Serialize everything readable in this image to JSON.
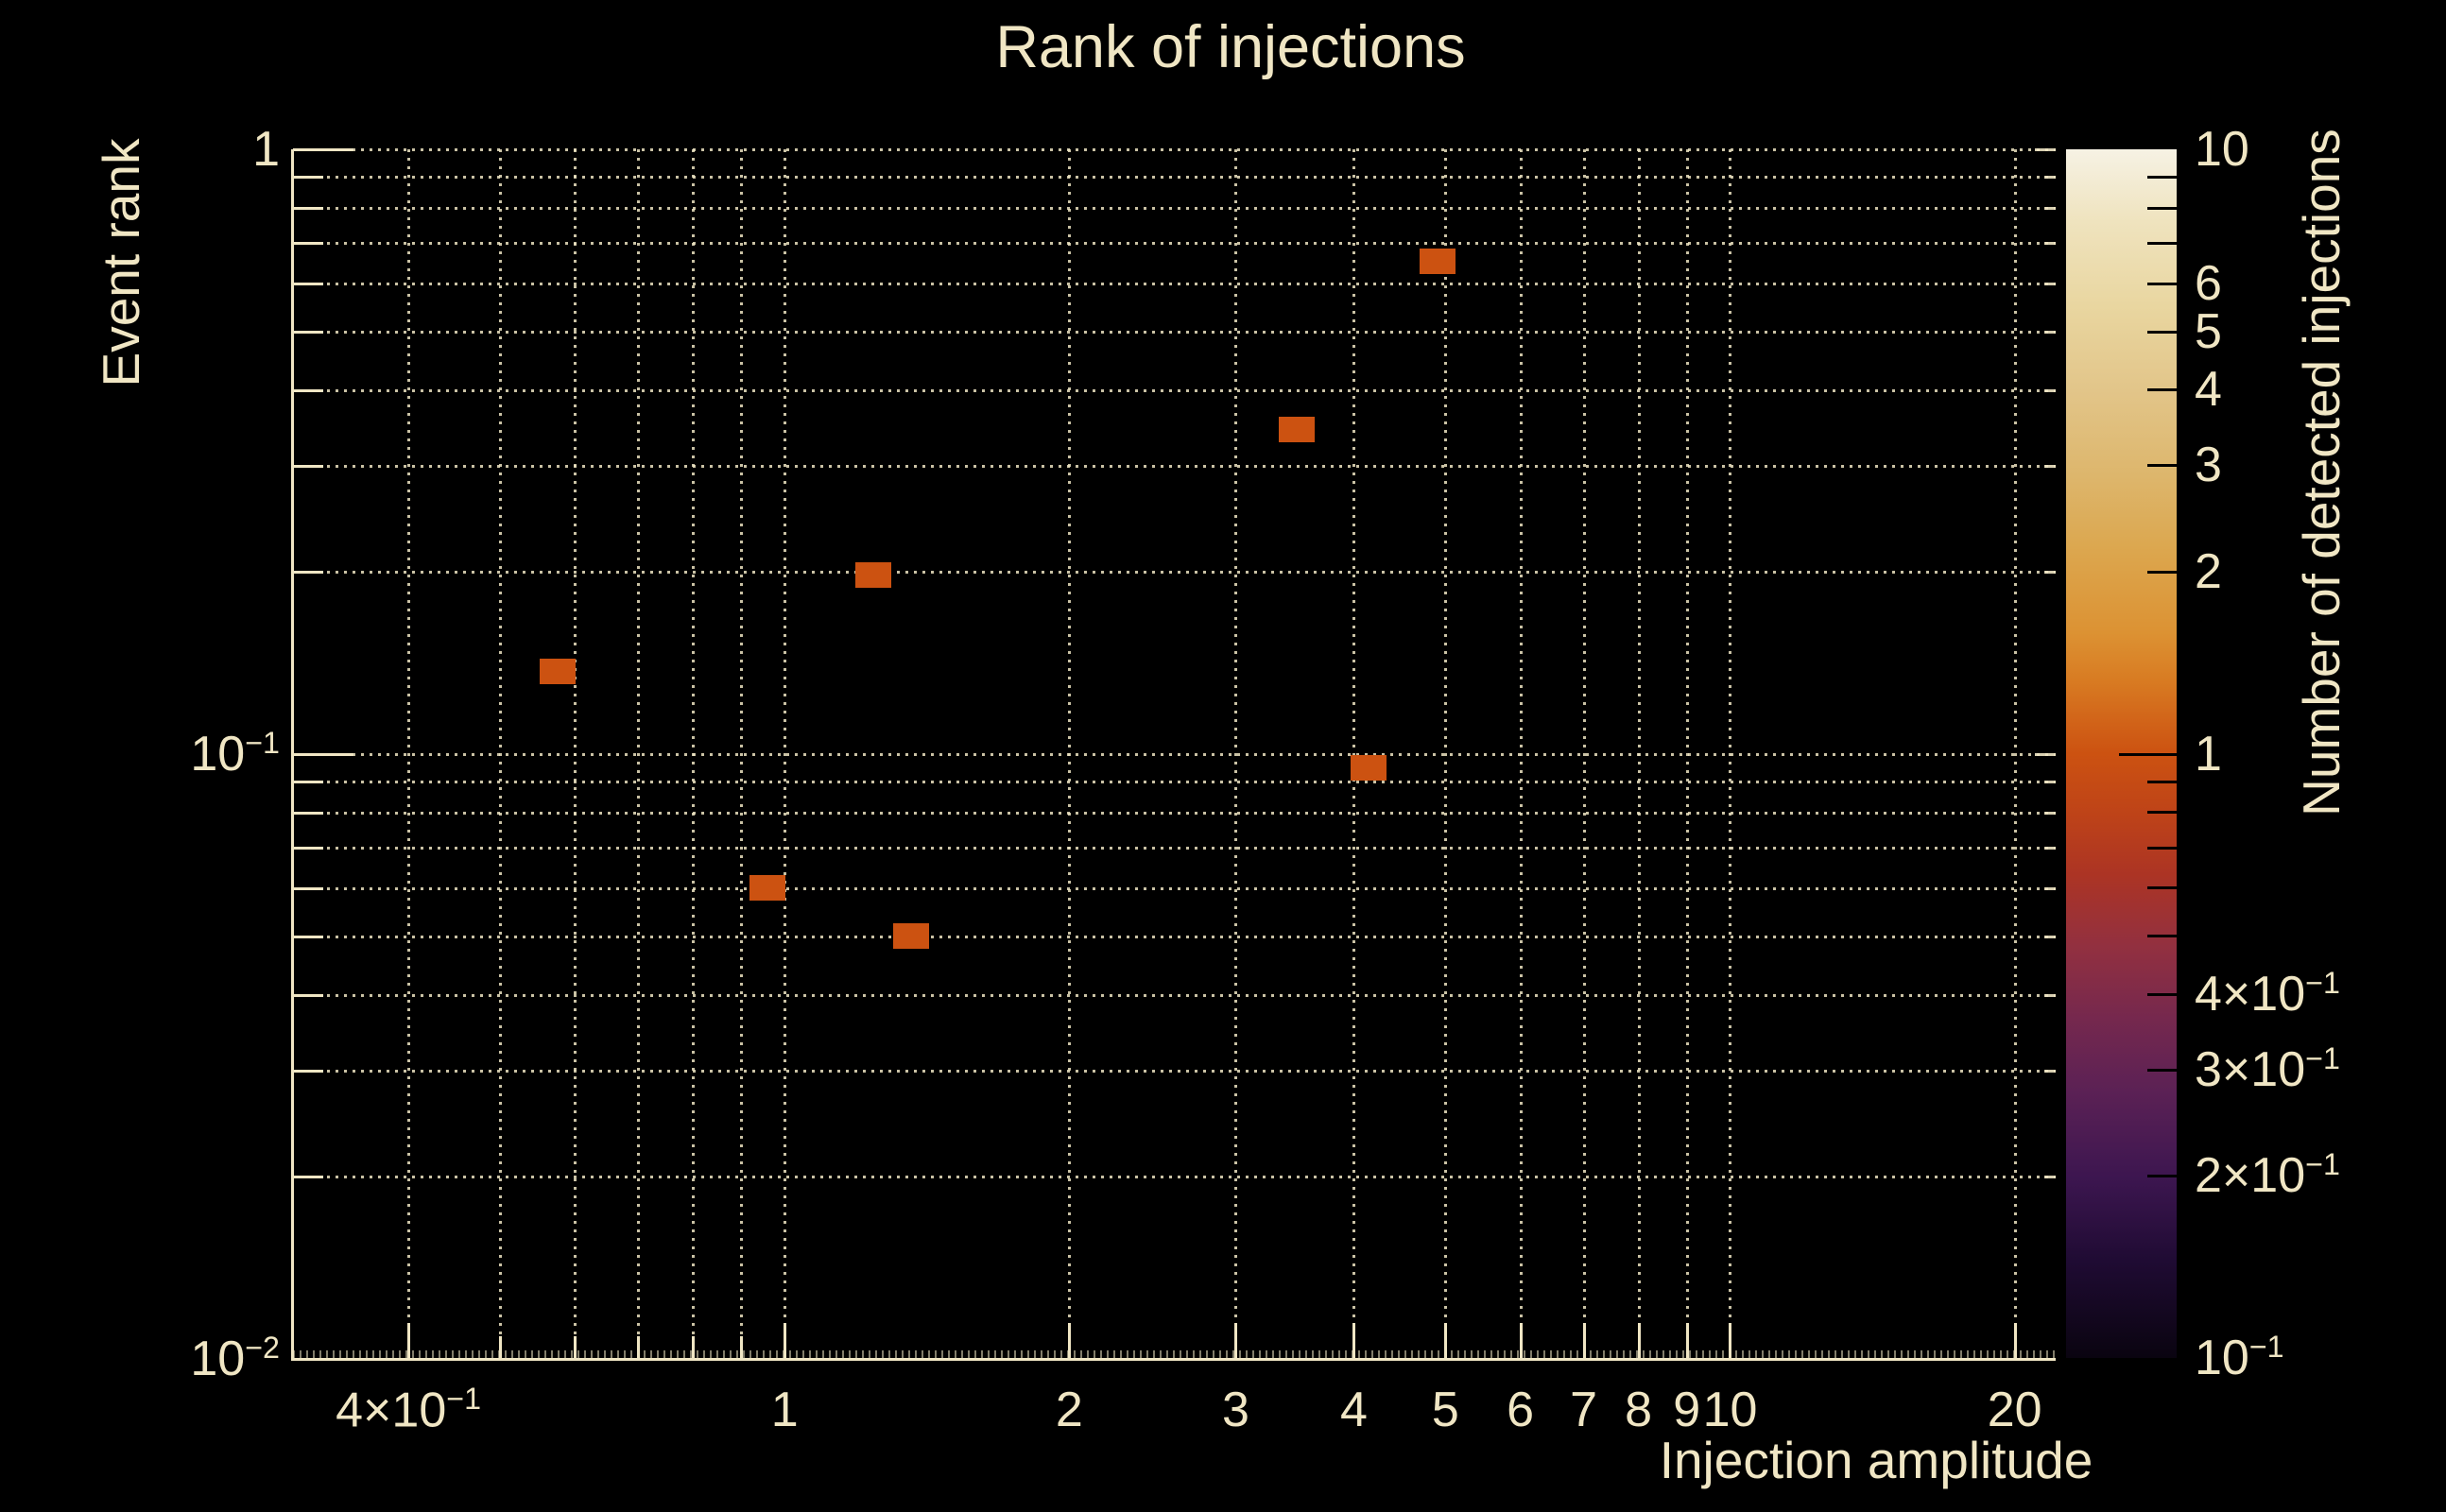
{
  "chart_data": {
    "type": "heatmap",
    "title": "Rank of injections",
    "xlabel": "Injection amplitude",
    "ylabel": "Event rank",
    "colorbar_label": "Number of detected injections",
    "x_scale": "log",
    "y_scale": "log",
    "z_scale": "log",
    "xlim": [
      0.302,
      22.1
    ],
    "ylim": [
      0.01,
      1
    ],
    "zlim": [
      0.1,
      10
    ],
    "grid": true,
    "legend_position": "right-colorbar",
    "x_ticks": [
      {
        "v": 0.4,
        "t": "4×10",
        "e": "−1"
      },
      {
        "v": 0.5
      },
      {
        "v": 0.6
      },
      {
        "v": 0.7
      },
      {
        "v": 0.8
      },
      {
        "v": 0.9
      },
      {
        "v": 1,
        "t": "1"
      },
      {
        "v": 2,
        "t": "2"
      },
      {
        "v": 3,
        "t": "3"
      },
      {
        "v": 4,
        "t": "4"
      },
      {
        "v": 5,
        "t": "5"
      },
      {
        "v": 6,
        "t": "6"
      },
      {
        "v": 7,
        "t": "7"
      },
      {
        "v": 8,
        "t": "8"
      },
      {
        "v": 9,
        "t": "9"
      },
      {
        "v": 10,
        "t": "10"
      },
      {
        "v": 20,
        "t": "20"
      }
    ],
    "y_ticks": [
      {
        "v": 1,
        "t": "1",
        "major": true
      },
      {
        "v": 0.9
      },
      {
        "v": 0.8
      },
      {
        "v": 0.7
      },
      {
        "v": 0.6
      },
      {
        "v": 0.5
      },
      {
        "v": 0.4
      },
      {
        "v": 0.3
      },
      {
        "v": 0.2
      },
      {
        "v": 0.1,
        "t": "10",
        "e": "−1",
        "major": true
      },
      {
        "v": 0.09
      },
      {
        "v": 0.08
      },
      {
        "v": 0.07
      },
      {
        "v": 0.06
      },
      {
        "v": 0.05
      },
      {
        "v": 0.04
      },
      {
        "v": 0.03
      },
      {
        "v": 0.02
      },
      {
        "v": 0.01,
        "t": "10",
        "e": "−2",
        "major": true,
        "edge": "bottom"
      }
    ],
    "z_ticks": [
      {
        "v": 10,
        "t": "10",
        "edge": "top"
      },
      {
        "v": 9
      },
      {
        "v": 8
      },
      {
        "v": 7
      },
      {
        "v": 6,
        "t": "6"
      },
      {
        "v": 5,
        "t": "5"
      },
      {
        "v": 4,
        "t": "4"
      },
      {
        "v": 3,
        "t": "3"
      },
      {
        "v": 2,
        "t": "2"
      },
      {
        "v": 1,
        "t": "1",
        "major": true
      },
      {
        "v": 0.9
      },
      {
        "v": 0.8
      },
      {
        "v": 0.7
      },
      {
        "v": 0.6
      },
      {
        "v": 0.5
      },
      {
        "v": 0.4,
        "t": "4×10",
        "e": "−1"
      },
      {
        "v": 0.3,
        "t": "3×10",
        "e": "−1"
      },
      {
        "v": 0.2,
        "t": "2×10",
        "e": "−1"
      },
      {
        "v": 0.1,
        "t": "10",
        "e": "−1",
        "edge": "bottom"
      }
    ],
    "points": [
      {
        "x": 0.575,
        "y": 0.137,
        "count": 1
      },
      {
        "x": 1.24,
        "y": 0.198,
        "count": 1
      },
      {
        "x": 0.96,
        "y": 0.06,
        "count": 1
      },
      {
        "x": 1.36,
        "y": 0.05,
        "count": 1
      },
      {
        "x": 3.48,
        "y": 0.344,
        "count": 1
      },
      {
        "x": 4.15,
        "y": 0.095,
        "count": 1
      },
      {
        "x": 4.9,
        "y": 0.654,
        "count": 1
      }
    ],
    "colorbar_gradient": [
      {
        "p": 0.0,
        "c": "#F6F2E4"
      },
      {
        "p": 0.06,
        "c": "#EFE3BE"
      },
      {
        "p": 0.13,
        "c": "#E9D6A0"
      },
      {
        "p": 0.2,
        "c": "#E2C589"
      },
      {
        "p": 0.27,
        "c": "#DDB66C"
      },
      {
        "p": 0.33,
        "c": "#DCA74F"
      },
      {
        "p": 0.4,
        "c": "#DC9233"
      },
      {
        "p": 0.44,
        "c": "#D87B22"
      },
      {
        "p": 0.47,
        "c": "#D2661A"
      },
      {
        "p": 0.5,
        "c": "#CC5211"
      },
      {
        "p": 0.55,
        "c": "#BE4318"
      },
      {
        "p": 0.6,
        "c": "#AC3424"
      },
      {
        "p": 0.66,
        "c": "#923040"
      },
      {
        "p": 0.72,
        "c": "#75284E"
      },
      {
        "p": 0.78,
        "c": "#5B2155"
      },
      {
        "p": 0.85,
        "c": "#3D1650"
      },
      {
        "p": 0.92,
        "c": "#1F0B33"
      },
      {
        "p": 1.0,
        "c": "#0A0410"
      }
    ],
    "colors": {
      "background": "#000000",
      "text": "#F0E6C4",
      "grid": "#EDE4C2",
      "bin": "#CC5211",
      "colorbar_tick": "#000000"
    }
  }
}
